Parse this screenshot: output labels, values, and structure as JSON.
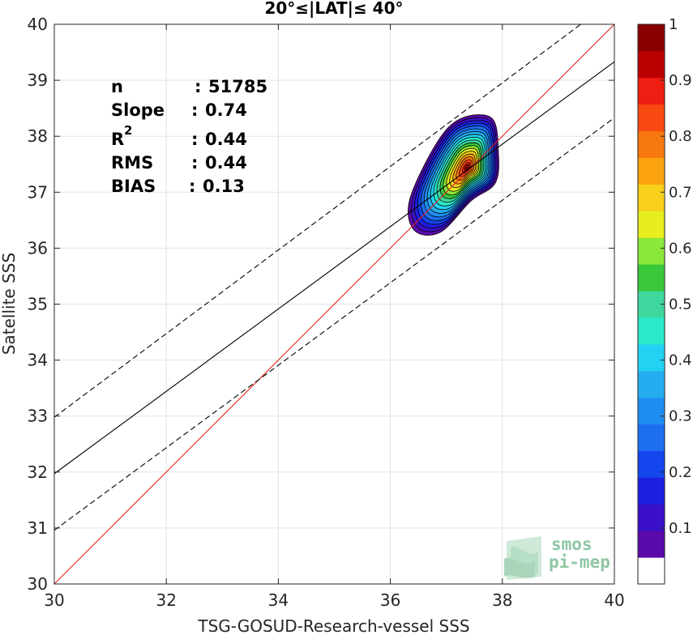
{
  "chart_data": {
    "type": "scatter",
    "title": "20°≤|LAT|≤ 40°",
    "xlabel": "TSG-GOSUD-Research-vessel SSS",
    "ylabel": "Satellite SSS",
    "xlim": [
      30,
      40
    ],
    "ylim": [
      30,
      40
    ],
    "xticks": [
      "30",
      "32",
      "34",
      "36",
      "38",
      "40"
    ],
    "yticks": [
      "30",
      "31",
      "32",
      "33",
      "34",
      "35",
      "36",
      "37",
      "38",
      "39",
      "40"
    ],
    "grid": true,
    "stats": [
      {
        "label": "n",
        "sep": ": ",
        "value": "51785"
      },
      {
        "label": "Slope",
        "sep": ": ",
        "value": "0.74"
      },
      {
        "label": "R",
        "sup": "2",
        "sep": ": ",
        "value": "0.44"
      },
      {
        "label": "RMS",
        "sep": ": ",
        "value": "0.44"
      },
      {
        "label": "BIAS",
        "sep": ": ",
        "value": "0.13"
      }
    ],
    "lines": [
      {
        "kind": "identity",
        "color": "#e02020",
        "style": "solid",
        "points": [
          [
            30,
            30
          ],
          [
            40,
            40
          ]
        ]
      },
      {
        "kind": "regression",
        "color": "#000000",
        "style": "solid",
        "points": [
          [
            30,
            31.97
          ],
          [
            40,
            39.33
          ]
        ]
      },
      {
        "kind": "upper-bound",
        "color": "#000000",
        "style": "dashed",
        "points": [
          [
            30,
            32.98
          ],
          [
            39.4,
            40
          ]
        ]
      },
      {
        "kind": "lower-bound",
        "color": "#000000",
        "style": "dashed",
        "points": [
          [
            30,
            30.96
          ],
          [
            40,
            38.33
          ]
        ]
      }
    ],
    "density_contours": {
      "center": [
        37.38,
        37.45
      ],
      "lower_lobe": [
        36.75,
        36.72
      ],
      "levels": [
        0.05,
        0.1,
        0.15,
        0.2,
        0.25,
        0.3,
        0.35,
        0.4,
        0.45,
        0.5,
        0.55,
        0.6,
        0.65,
        0.7,
        0.75,
        0.8,
        0.85,
        0.9,
        0.95
      ],
      "colors": [
        "#5a0aa8",
        "#3a10c8",
        "#1e1ee0",
        "#1446ee",
        "#1e6ef0",
        "#1e8ef2",
        "#24aef0",
        "#22d2f2",
        "#2ae8c8",
        "#3ed89e",
        "#38c83a",
        "#8ae83a",
        "#e8ee1e",
        "#f8d01c",
        "#fba410",
        "#f87810",
        "#f84a10",
        "#ee1e12",
        "#8a0000"
      ]
    },
    "colorbar": {
      "min": 0,
      "max": 1,
      "ticks": [
        "0.1",
        "0.2",
        "0.3",
        "0.4",
        "0.5",
        "0.6",
        "0.7",
        "0.8",
        "0.9",
        "1"
      ],
      "colors": [
        "#ffffff",
        "#5a0aa8",
        "#3a10c8",
        "#1e1ee0",
        "#1446ee",
        "#1e6ef0",
        "#1e8ef2",
        "#24aef0",
        "#22d2f2",
        "#2ae8c8",
        "#3ed89e",
        "#38c83a",
        "#8ae83a",
        "#e8ee1e",
        "#f8d01c",
        "#fba410",
        "#f87810",
        "#f84a10",
        "#ee1e12",
        "#bb0000",
        "#8a0000"
      ]
    },
    "logo": {
      "line1": "smos",
      "line2": "pi-mep",
      "color": "#8fc7a5"
    }
  }
}
